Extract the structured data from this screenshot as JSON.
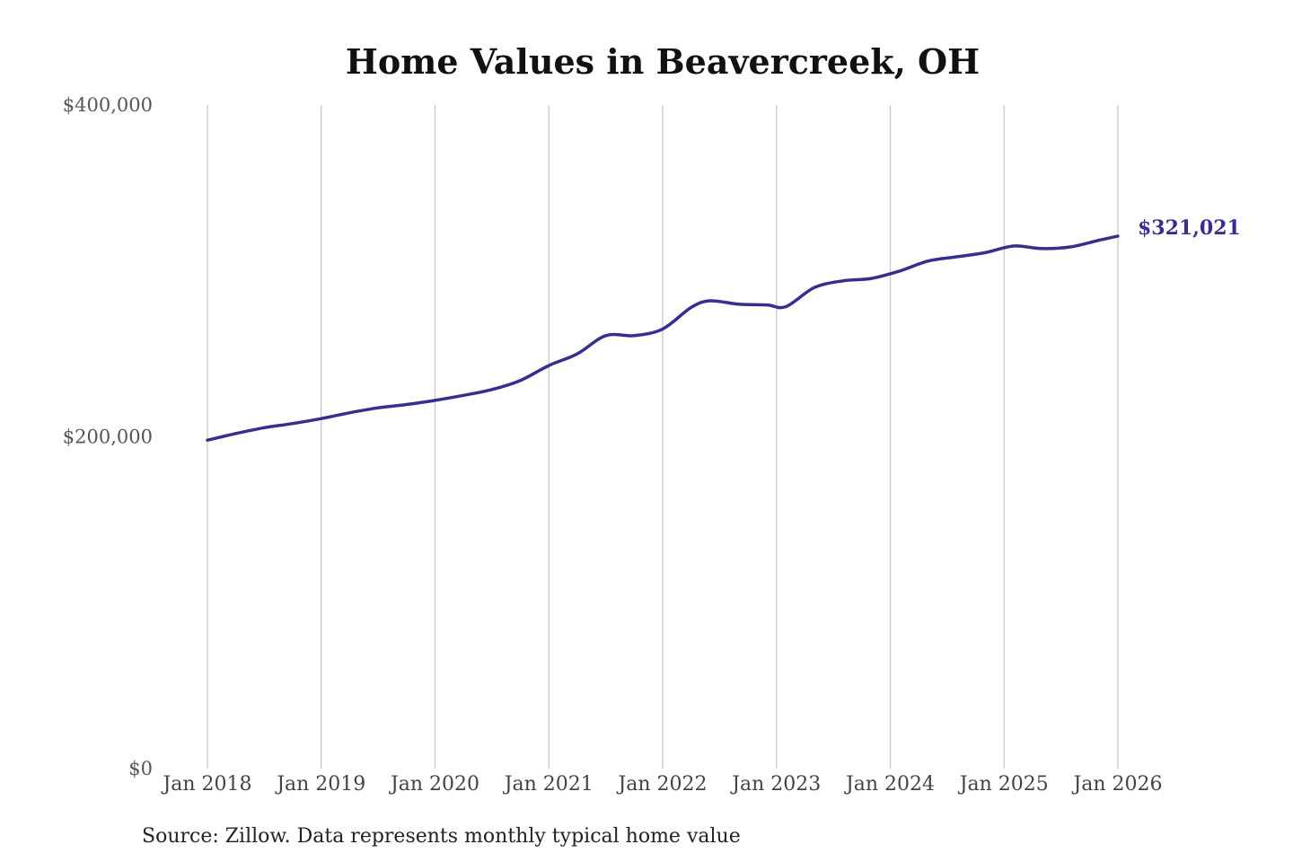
{
  "chart_data": {
    "type": "line",
    "title": "Home Values in Beavercreek, OH",
    "source": "Source: Zillow. Data represents monthly typical home value",
    "xlabel": "",
    "ylabel": "",
    "x_ticks": [
      "Jan 2018",
      "Jan 2019",
      "Jan 2020",
      "Jan 2021",
      "Jan 2022",
      "Jan 2023",
      "Jan 2024",
      "Jan 2025",
      "Jan 2026"
    ],
    "y_ticks": [
      "$0",
      "$200,000",
      "$400,000"
    ],
    "ylim": [
      0,
      400000
    ],
    "xlim": [
      "2018-01",
      "2026-01"
    ],
    "grid": "vertical",
    "legend": "none",
    "series": [
      {
        "color": "#35308f",
        "end_label": "$321,021",
        "points": [
          {
            "x": "2018-01",
            "y": 198000
          },
          {
            "x": "2018-04",
            "y": 202000
          },
          {
            "x": "2018-07",
            "y": 205500
          },
          {
            "x": "2018-10",
            "y": 208000
          },
          {
            "x": "2019-01",
            "y": 211000
          },
          {
            "x": "2019-04",
            "y": 214500
          },
          {
            "x": "2019-07",
            "y": 217500
          },
          {
            "x": "2019-10",
            "y": 219500
          },
          {
            "x": "2020-01",
            "y": 222000
          },
          {
            "x": "2020-04",
            "y": 225000
          },
          {
            "x": "2020-07",
            "y": 228500
          },
          {
            "x": "2020-10",
            "y": 234000
          },
          {
            "x": "2021-01",
            "y": 243000
          },
          {
            "x": "2021-04",
            "y": 250000
          },
          {
            "x": "2021-07",
            "y": 261000
          },
          {
            "x": "2021-10",
            "y": 261000
          },
          {
            "x": "2022-01",
            "y": 265000
          },
          {
            "x": "2022-04",
            "y": 278000
          },
          {
            "x": "2022-06",
            "y": 282000
          },
          {
            "x": "2022-09",
            "y": 280000
          },
          {
            "x": "2022-12",
            "y": 279500
          },
          {
            "x": "2023-02",
            "y": 278500
          },
          {
            "x": "2023-05",
            "y": 290000
          },
          {
            "x": "2023-08",
            "y": 294000
          },
          {
            "x": "2023-11",
            "y": 295500
          },
          {
            "x": "2024-02",
            "y": 300000
          },
          {
            "x": "2024-05",
            "y": 306000
          },
          {
            "x": "2024-08",
            "y": 308500
          },
          {
            "x": "2024-11",
            "y": 311000
          },
          {
            "x": "2025-02",
            "y": 315000
          },
          {
            "x": "2025-05",
            "y": 313500
          },
          {
            "x": "2025-08",
            "y": 314500
          },
          {
            "x": "2025-11",
            "y": 318500
          },
          {
            "x": "2026-01",
            "y": 321021
          }
        ]
      }
    ]
  }
}
